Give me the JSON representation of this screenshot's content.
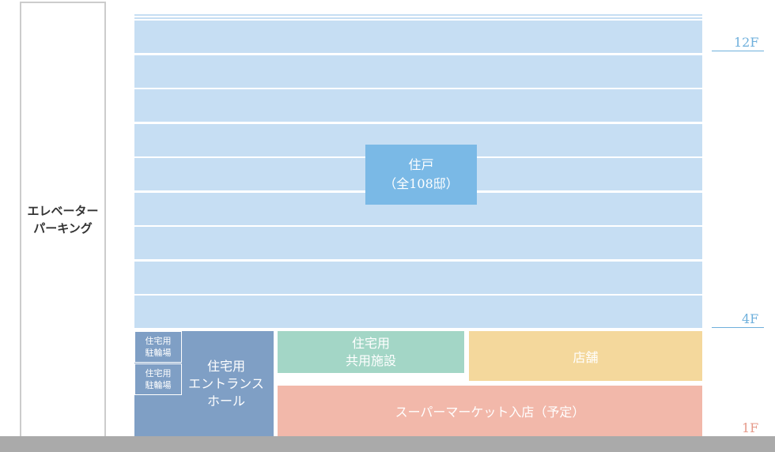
{
  "elevator_parking": {
    "lines": [
      "エレベーター",
      "パーキング"
    ]
  },
  "residences": {
    "title": "住戸",
    "subtitle": "（全108邸）"
  },
  "floor_labels": [
    "12F",
    "4F",
    "1F"
  ],
  "bicycle_parking": [
    {
      "lines": [
        "住宅用",
        "駐輪場"
      ]
    },
    {
      "lines": [
        "住宅用",
        "駐輪場"
      ]
    }
  ],
  "entrance_hall": {
    "lines": [
      "住宅用",
      "エントランス",
      "ホール"
    ]
  },
  "common_facility": {
    "lines": [
      "住宅用",
      "共用施設"
    ]
  },
  "shop": {
    "label": "店舗"
  },
  "supermarket": {
    "label": "スーパーマーケット入店（予定）"
  }
}
